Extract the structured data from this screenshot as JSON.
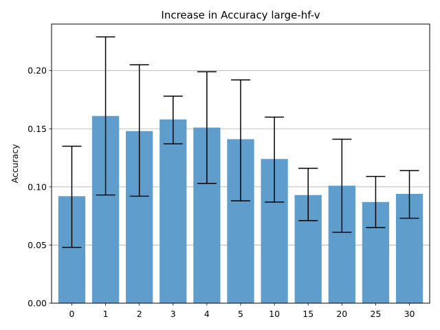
{
  "chart_data": {
    "type": "bar",
    "title": "Increase in Accuracy large-hf-v",
    "xlabel": "",
    "ylabel": "Accuracy",
    "categories": [
      "0",
      "1",
      "2",
      "3",
      "4",
      "5",
      "10",
      "15",
      "20",
      "25",
      "30"
    ],
    "values": [
      0.092,
      0.161,
      0.148,
      0.158,
      0.151,
      0.141,
      0.124,
      0.093,
      0.101,
      0.087,
      0.094
    ],
    "error_low": [
      0.048,
      0.093,
      0.092,
      0.137,
      0.103,
      0.088,
      0.087,
      0.071,
      0.061,
      0.065,
      0.073
    ],
    "error_high": [
      0.135,
      0.229,
      0.205,
      0.178,
      0.199,
      0.192,
      0.16,
      0.116,
      0.141,
      0.109,
      0.114
    ],
    "ylim": [
      0,
      0.24
    ],
    "yticks": [
      0.0,
      0.05,
      0.1,
      0.15,
      0.2
    ],
    "ytick_labels": [
      "0.00",
      "0.05",
      "0.10",
      "0.15",
      "0.20"
    ],
    "grid": "horizontal",
    "bar_color": "#5f9ecc",
    "error_color": "#000000",
    "grid_color": "#b0b0b0"
  }
}
